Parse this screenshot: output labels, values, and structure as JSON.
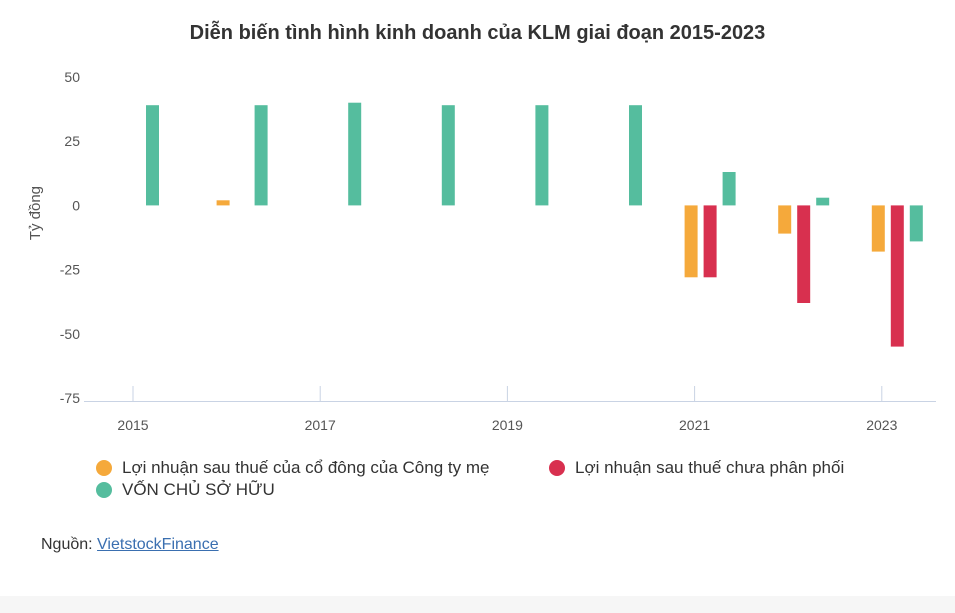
{
  "title": "Diễn biến tình hình kinh doanh của KLM giai đoạn 2015-2023",
  "source": {
    "label": "Nguồn:",
    "link_text": "VietstockFinance"
  },
  "chart_data": {
    "type": "bar",
    "title": "Diễn biến tình hình kinh doanh của KLM giai đoạn 2015-2023",
    "ylabel": "Tỷ đồng",
    "xlabel": "",
    "categories": [
      "2015",
      "2016",
      "2017",
      "2018",
      "2019",
      "2020",
      "2021",
      "2022",
      "2023"
    ],
    "x_tick_labels": [
      "2015",
      "2017",
      "2019",
      "2021",
      "2023"
    ],
    "y_ticks": [
      50,
      25,
      0,
      -25,
      -50,
      -75
    ],
    "y_tick_labels": [
      "50",
      "25",
      "0",
      "-25",
      "-50",
      "-75"
    ],
    "ylim": [
      -75,
      50
    ],
    "grid": false,
    "legend_position": "bottom-left",
    "series": [
      {
        "name": "Lợi nhuận sau thuế của cổ đông của Công ty mẹ",
        "color": "#f5a93b",
        "values": [
          null,
          2,
          null,
          null,
          null,
          null,
          -28,
          -11,
          -18
        ]
      },
      {
        "name": "Lợi nhuận sau thuế chưa phân phối",
        "color": "#d8304f",
        "values": [
          null,
          null,
          null,
          null,
          null,
          null,
          -28,
          -38,
          -55
        ]
      },
      {
        "name": "VỐN CHỦ SỞ HỮU",
        "color": "#55bd9e",
        "values": [
          39,
          39,
          40,
          39,
          39,
          39,
          13,
          3,
          -14
        ]
      }
    ]
  }
}
